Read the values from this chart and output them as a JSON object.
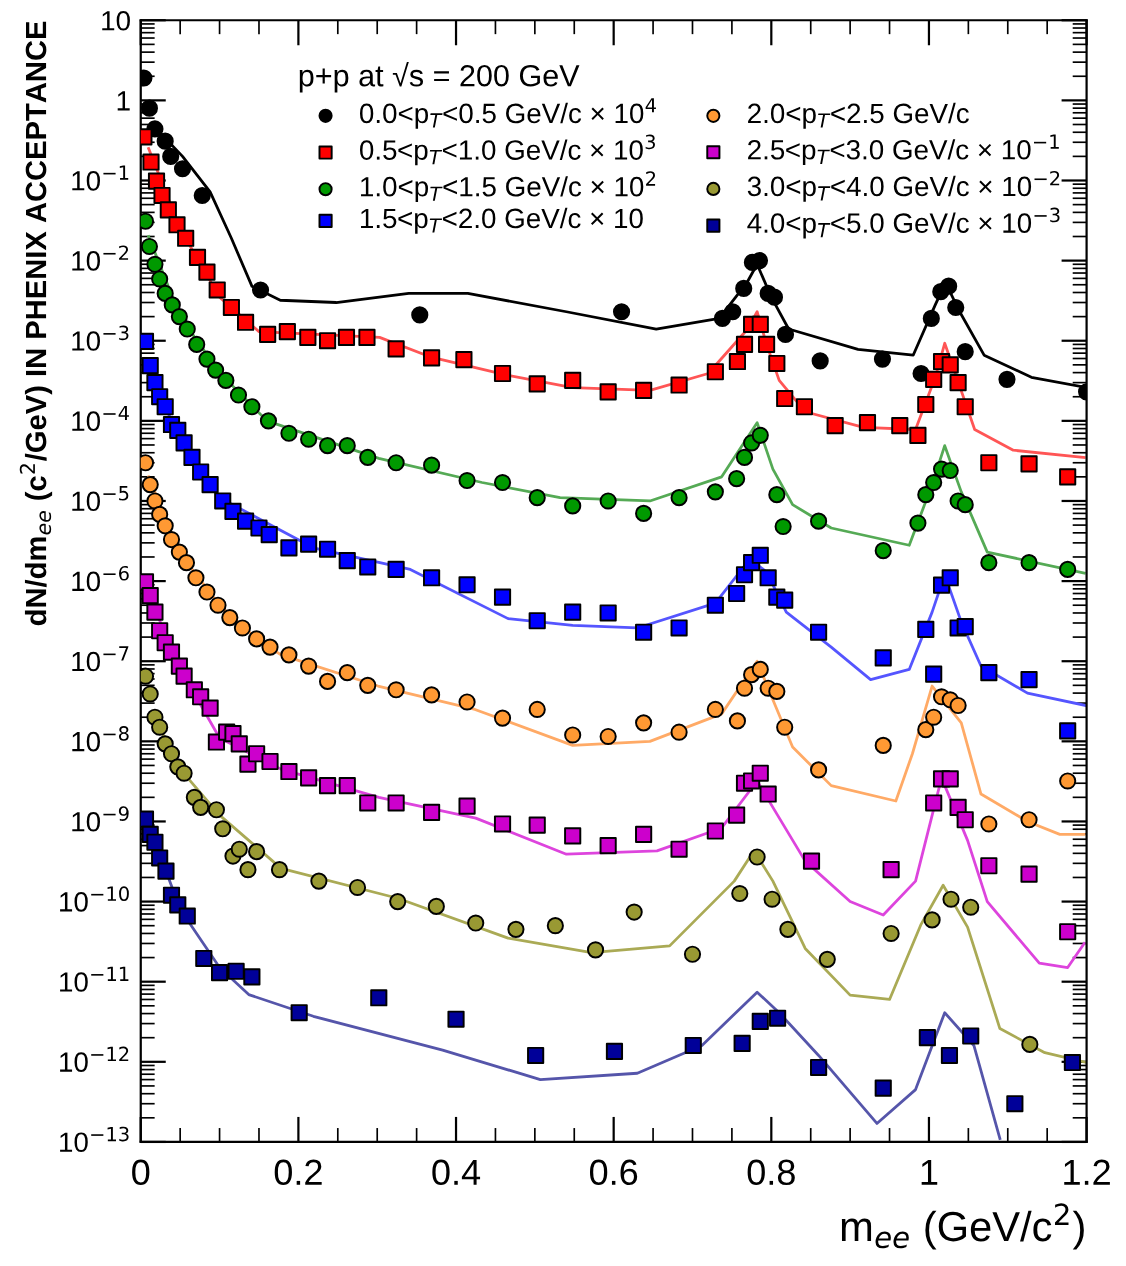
{
  "chart_data": {
    "type": "scatter",
    "legend_title": "p+p at √s = 200 GeV",
    "xlabel": "m$_{ee}$ (GeV/c$^{2}$)",
    "ylabel": "dN/dm$_{ee}$ (c$^{2}$/GeV) IN PHENIX ACCEPTANCE",
    "log": "y",
    "xlim": [
      0,
      1.2
    ],
    "ylim": [
      1e-13,
      10
    ],
    "xticks": [
      0,
      0.2,
      0.4,
      0.6,
      0.8,
      1,
      1.2
    ],
    "yticks": [
      {
        "value": 1e-13,
        "label": "10$^{−13}$"
      },
      {
        "value": 1e-12,
        "label": "10$^{−12}$"
      },
      {
        "value": 1e-11,
        "label": "10$^{−11}$"
      },
      {
        "value": 1e-10,
        "label": "10$^{−10}$"
      },
      {
        "value": 1e-09,
        "label": "10$^{−9}$"
      },
      {
        "value": 1e-08,
        "label": "10$^{−8}$"
      },
      {
        "value": 1e-07,
        "label": "10$^{−7}$"
      },
      {
        "value": 1e-06,
        "label": "10$^{−6}$"
      },
      {
        "value": 1e-05,
        "label": "10$^{−5}$"
      },
      {
        "value": 0.0001,
        "label": "10$^{−4}$"
      },
      {
        "value": 0.001,
        "label": "10$^{−3}$"
      },
      {
        "value": 0.01,
        "label": "10$^{−2}$"
      },
      {
        "value": 0.1,
        "label": "10$^{−1}$"
      },
      1,
      10
    ],
    "grid": false,
    "legend": "top",
    "series": [
      {
        "name": "0.0<p$_{T}$<0.5 GeV/c × 10$^{4}$",
        "marker": "circle",
        "color": "#000000",
        "x": [
          0.004,
          0.011,
          0.018,
          0.031,
          0.038,
          0.053,
          0.078,
          0.152,
          0.354,
          0.61,
          0.738,
          0.751,
          0.765,
          0.776,
          0.785,
          0.796,
          0.804,
          0.818,
          0.862,
          0.941,
          0.99,
          1.003,
          1.015,
          1.025,
          1.034,
          1.046,
          1.099,
          1.2
        ],
        "values": [
          1.9,
          0.8,
          0.44,
          0.31,
          0.2,
          0.14,
          0.065,
          0.0043,
          0.0021,
          0.0023,
          0.0019,
          0.0023,
          0.0045,
          0.0095,
          0.01,
          0.0039,
          0.0035,
          0.0012,
          0.00056,
          0.00059,
          0.00039,
          0.0019,
          0.0041,
          0.0048,
          0.0026,
          0.00073,
          0.00033,
          0.00023
        ]
      },
      {
        "name": "0.5<p$_{T}$<1.0 GeV/c × 10$^{3}$",
        "marker": "square",
        "color": "#ff0000",
        "x": [
          0.004,
          0.013,
          0.02,
          0.027,
          0.035,
          0.046,
          0.057,
          0.072,
          0.084,
          0.097,
          0.115,
          0.133,
          0.161,
          0.186,
          0.212,
          0.237,
          0.261,
          0.287,
          0.324,
          0.369,
          0.41,
          0.459,
          0.503,
          0.548,
          0.593,
          0.638,
          0.683,
          0.729,
          0.757,
          0.766,
          0.775,
          0.786,
          0.794,
          0.807,
          0.817,
          0.842,
          0.881,
          0.922,
          0.963,
          0.986,
          0.996,
          1.006,
          1.016,
          1.027,
          1.037,
          1.046,
          1.076,
          1.127,
          1.176
        ],
        "values": [
          0.35,
          0.17,
          0.098,
          0.065,
          0.043,
          0.028,
          0.019,
          0.011,
          0.0072,
          0.0043,
          0.0026,
          0.0017,
          0.0012,
          0.0013,
          0.0011,
          0.001,
          0.0011,
          0.0011,
          0.00079,
          0.00061,
          0.00058,
          0.00039,
          0.00029,
          0.00032,
          0.00023,
          0.00024,
          0.00028,
          0.00041,
          0.00055,
          0.0009,
          0.0016,
          0.0016,
          0.0009,
          0.00052,
          0.00019,
          0.00015,
          8.7e-05,
          9.5e-05,
          8.7e-05,
          6.6e-05,
          0.00016,
          0.00033,
          0.00055,
          0.0005,
          0.0003,
          0.00015,
          3e-05,
          2.9e-05,
          2e-05
        ]
      },
      {
        "name": "1.0<p$_{T}$<1.5 GeV/c × 10$^{2}$",
        "marker": "circle",
        "color": "#009900",
        "x": [
          0.006,
          0.011,
          0.018,
          0.024,
          0.031,
          0.04,
          0.049,
          0.059,
          0.071,
          0.084,
          0.095,
          0.108,
          0.124,
          0.141,
          0.162,
          0.188,
          0.213,
          0.237,
          0.262,
          0.288,
          0.324,
          0.369,
          0.414,
          0.459,
          0.503,
          0.548,
          0.593,
          0.638,
          0.683,
          0.729,
          0.756,
          0.766,
          0.775,
          0.786,
          0.807,
          0.815,
          0.86,
          0.942,
          0.986,
          0.996,
          1.006,
          1.016,
          1.027,
          1.037,
          1.046,
          1.076,
          1.127,
          1.176
        ],
        "values": [
          0.031,
          0.015,
          0.009,
          0.0059,
          0.0039,
          0.0028,
          0.002,
          0.0014,
          0.0009,
          0.00059,
          0.00043,
          0.00032,
          0.00021,
          0.00015,
          0.0001,
          7e-05,
          5.9e-05,
          4.9e-05,
          4.9e-05,
          3.5e-05,
          3e-05,
          2.8e-05,
          1.8e-05,
          1.7e-05,
          1.1e-05,
          8.7e-06,
          1e-05,
          7e-06,
          1.1e-05,
          1.3e-05,
          1.9e-05,
          3.5e-05,
          5.3e-05,
          6.6e-05,
          1.2e-05,
          4.8e-06,
          5.6e-06,
          2.4e-06,
          5.3e-06,
          1.2e-05,
          1.7e-05,
          2.5e-05,
          2.4e-05,
          1e-05,
          9e-06,
          1.7e-06,
          1.7e-06,
          1.4e-06
        ]
      },
      {
        "name": "1.5<p$_{T}$<2.0 GeV/c × 10",
        "marker": "square",
        "color": "#0000ff",
        "x": [
          0.006,
          0.012,
          0.018,
          0.024,
          0.031,
          0.039,
          0.047,
          0.055,
          0.065,
          0.076,
          0.088,
          0.104,
          0.117,
          0.133,
          0.15,
          0.163,
          0.188,
          0.213,
          0.237,
          0.262,
          0.288,
          0.324,
          0.369,
          0.414,
          0.459,
          0.503,
          0.548,
          0.593,
          0.638,
          0.683,
          0.729,
          0.756,
          0.766,
          0.775,
          0.786,
          0.796,
          0.807,
          0.817,
          0.86,
          0.942,
          0.996,
          1.006,
          1.016,
          1.027,
          1.037,
          1.046,
          1.076,
          1.127,
          1.176
        ],
        "values": [
          0.00098,
          0.00049,
          0.0003,
          0.0002,
          0.00015,
          9e-05,
          7.6e-05,
          5.3e-05,
          3.5e-05,
          2.3e-05,
          1.6e-05,
          1e-05,
          7.4e-06,
          5.6e-06,
          4.6e-06,
          3.8e-06,
          2.6e-06,
          2.9e-06,
          2.5e-06,
          1.8e-06,
          1.5e-06,
          1.4e-06,
          1.1e-06,
          9e-07,
          6.3e-07,
          3.2e-07,
          4.1e-07,
          4e-07,
          2.3e-07,
          2.6e-07,
          5e-07,
          7e-07,
          1.2e-06,
          1.7e-06,
          2.1e-06,
          1.1e-06,
          6.3e-07,
          5.8e-07,
          2.3e-07,
          1.1e-07,
          2.5e-07,
          6.9e-08,
          8.9e-07,
          1.1e-06,
          2.6e-07,
          2.7e-07,
          7.2e-08,
          5.9e-08,
          1.35e-08
        ]
      },
      {
        "name": "2.0<p$_{T}$<2.5 GeV/c",
        "marker": "circle",
        "color": "#ff9933",
        "x": [
          0.006,
          0.012,
          0.018,
          0.024,
          0.031,
          0.039,
          0.049,
          0.058,
          0.07,
          0.084,
          0.098,
          0.113,
          0.129,
          0.147,
          0.164,
          0.188,
          0.213,
          0.237,
          0.262,
          0.288,
          0.324,
          0.369,
          0.414,
          0.459,
          0.503,
          0.548,
          0.593,
          0.638,
          0.683,
          0.729,
          0.757,
          0.766,
          0.775,
          0.786,
          0.796,
          0.807,
          0.817,
          0.86,
          0.942,
          0.996,
          1.006,
          1.016,
          1.027,
          1.037,
          1.076,
          1.127,
          1.176
        ],
        "values": [
          3e-05,
          1.6e-05,
          1e-05,
          6.8e-06,
          4.9e-06,
          3.3e-06,
          2.3e-06,
          1.7e-06,
          1.1e-06,
          7.3e-07,
          5e-07,
          3.5e-07,
          2.6e-07,
          1.9e-07,
          1.5e-07,
          1.2e-07,
          8.7e-08,
          5.6e-08,
          7.2e-08,
          5e-08,
          4.4e-08,
          3.8e-08,
          3.1e-08,
          1.95e-08,
          2.5e-08,
          1.2e-08,
          1.15e-08,
          1.7e-08,
          1.3e-08,
          2.5e-08,
          1.8e-08,
          4.6e-08,
          6.8e-08,
          7.9e-08,
          4.6e-08,
          4.2e-08,
          1.5e-08,
          4.4e-09,
          8.9e-09,
          1.4e-08,
          2e-08,
          3.6e-08,
          3.3e-08,
          2.8e-08,
          9.3e-10,
          1.05e-09,
          3.2e-09
        ]
      },
      {
        "name": "2.5<p$_{T}$<3.0 GeV/c × 10$^{−1}$",
        "marker": "square",
        "color": "#cc00cc",
        "x": [
          0.006,
          0.012,
          0.018,
          0.024,
          0.031,
          0.039,
          0.049,
          0.055,
          0.068,
          0.076,
          0.088,
          0.096,
          0.109,
          0.117,
          0.125,
          0.136,
          0.147,
          0.164,
          0.188,
          0.213,
          0.237,
          0.262,
          0.288,
          0.324,
          0.369,
          0.414,
          0.459,
          0.503,
          0.548,
          0.593,
          0.638,
          0.683,
          0.729,
          0.756,
          0.766,
          0.775,
          0.786,
          0.796,
          0.851,
          0.952,
          1.006,
          1.016,
          1.027,
          1.037,
          1.046,
          1.076,
          1.127,
          1.176
        ],
        "values": [
          9.8e-07,
          6.6e-07,
          4.1e-07,
          2.4e-07,
          1.7e-07,
          1.3e-07,
          8.7e-08,
          6.5e-08,
          4.4e-08,
          3.6e-08,
          2.6e-08,
          9.8e-09,
          1.3e-08,
          1.25e-08,
          9.3e-09,
          5.2e-09,
          7e-09,
          5.6e-09,
          4.2e-09,
          3.5e-09,
          2.8e-09,
          2.8e-09,
          1.7e-09,
          1.7e-09,
          1.3e-09,
          1.55e-09,
          9.3e-10,
          9e-10,
          6.6e-10,
          5e-10,
          6.9e-10,
          4.5e-10,
          7.6e-10,
          1.2e-09,
          3e-09,
          3.2e-09,
          4e-09,
          2.2e-09,
          3.2e-10,
          2.5e-10,
          1.7e-09,
          3.4e-09,
          3.4e-09,
          1.5e-09,
          1.05e-09,
          2.8e-10,
          2.2e-10,
          4.2e-11
        ]
      },
      {
        "name": "3.0<p$_{T}$<4.0 GeV/c × 10$^{−2}$",
        "marker": "circle",
        "color": "#999933",
        "x": [
          0.006,
          0.012,
          0.018,
          0.024,
          0.031,
          0.039,
          0.047,
          0.055,
          0.068,
          0.076,
          0.096,
          0.104,
          0.117,
          0.125,
          0.136,
          0.147,
          0.176,
          0.226,
          0.275,
          0.326,
          0.375,
          0.425,
          0.476,
          0.526,
          0.577,
          0.626,
          0.7,
          0.76,
          0.782,
          0.801,
          0.821,
          0.871,
          0.952,
          1.004,
          1.028,
          1.053,
          1.128
        ],
        "values": [
          6.5e-08,
          3.9e-08,
          2e-08,
          1.5e-08,
          9.3e-09,
          7e-09,
          4.8e-09,
          4e-09,
          2e-09,
          1.5e-09,
          1.4e-09,
          8.1e-10,
          3.7e-10,
          4.5e-10,
          2.5e-10,
          4.2e-10,
          2.5e-10,
          1.8e-10,
          1.5e-10,
          1e-10,
          8.7e-11,
          5.4e-11,
          4.5e-11,
          5e-11,
          2.5e-11,
          7.4e-11,
          2.2e-11,
          1.26e-10,
          3.6e-10,
          1.07e-10,
          4.5e-11,
          1.9e-11,
          4e-11,
          5.9e-11,
          1.07e-10,
          8.5e-11,
          1.65e-12
        ]
      },
      {
        "name": "4.0<p$_{T}$<5.0 GeV/c × 10$^{−3}$",
        "marker": "square",
        "color": "#000099",
        "x": [
          0.006,
          0.012,
          0.018,
          0.024,
          0.032,
          0.039,
          0.047,
          0.059,
          0.08,
          0.1,
          0.121,
          0.141,
          0.201,
          0.302,
          0.4,
          0.501,
          0.601,
          0.701,
          0.763,
          0.786,
          0.808,
          0.86,
          0.942,
          0.998,
          1.026,
          1.053,
          1.109,
          1.182
        ],
        "values": [
          1.07e-09,
          6.9e-10,
          5.5e-10,
          3.5e-10,
          2.4e-10,
          1.2e-10,
          9.1e-11,
          6.6e-11,
          1.95e-11,
          1.3e-11,
          1.35e-11,
          1.15e-11,
          4.1e-12,
          6.3e-12,
          3.4e-12,
          1.2e-12,
          1.35e-12,
          1.6e-12,
          1.7e-12,
          3.2e-12,
          3.5e-12,
          8.5e-13,
          4.7e-13,
          2e-12,
          1.2e-12,
          2.1e-12,
          3e-13,
          9.8e-13
        ]
      },
      {
        "type": "line",
        "color": "#000000",
        "x": [
          0.013,
          0.053,
          0.088,
          0.115,
          0.141,
          0.177,
          0.248,
          0.34,
          0.415,
          0.54,
          0.654,
          0.734,
          0.769,
          0.782,
          0.8,
          0.822,
          0.91,
          0.98,
          1.008,
          1.021,
          1.039,
          1.07,
          1.13,
          1.2
        ],
        "values": [
          0.52,
          0.2,
          0.072,
          0.019,
          0.0048,
          0.0032,
          0.003,
          0.0039,
          0.0039,
          0.0023,
          0.0014,
          0.0019,
          0.0053,
          0.009,
          0.0035,
          0.0014,
          0.00078,
          0.00066,
          0.0028,
          0.0053,
          0.0023,
          0.00066,
          0.00035,
          0.00026
        ]
      },
      {
        "type": "line",
        "color": "#ff5555",
        "x": [
          0.01,
          0.05,
          0.1,
          0.15,
          0.303,
          0.367,
          0.466,
          0.548,
          0.646,
          0.72,
          0.77,
          0.782,
          0.794,
          0.81,
          0.843,
          0.917,
          0.983,
          1.008,
          1.02,
          1.033,
          1.058,
          1.107,
          1.197
        ],
        "values": [
          0.25,
          0.025,
          0.0035,
          0.0013,
          0.0011,
          0.00063,
          0.00037,
          0.00026,
          0.00024,
          0.00039,
          0.0014,
          0.0023,
          0.0009,
          0.00032,
          0.00013,
          8.3e-05,
          7.8e-05,
          0.00035,
          0.00093,
          0.0004,
          7.8e-05,
          4.3e-05,
          3.5e-05
        ]
      },
      {
        "type": "line",
        "color": "#55aa55",
        "x": [
          0.01,
          0.05,
          0.1,
          0.16,
          0.302,
          0.433,
          0.532,
          0.646,
          0.737,
          0.782,
          0.802,
          0.827,
          0.876,
          0.975,
          1.004,
          1.02,
          1.041,
          1.074,
          1.197
        ],
        "values": [
          0.02,
          0.002,
          0.0004,
          0.0001,
          3.4e-05,
          1.7e-05,
          1.1e-05,
          1e-05,
          2e-05,
          9.5e-05,
          2.5e-05,
          9e-06,
          4.6e-06,
          2.8e-06,
          1.6e-05,
          4.9e-05,
          1.3e-05,
          2.3e-06,
          1.26e-06
        ]
      },
      {
        "type": "line",
        "color": "#5555ff",
        "x": [
          0.02,
          0.05,
          0.1,
          0.219,
          0.342,
          0.466,
          0.548,
          0.63,
          0.729,
          0.773,
          0.794,
          0.819,
          0.876,
          0.926,
          0.975,
          1.004,
          1.02,
          1.041,
          1.066,
          1.125,
          1.199
        ],
        "values": [
          0.00025,
          6e-05,
          1.1e-05,
          2.6e-06,
          1.4e-06,
          3.4e-07,
          2.8e-07,
          2.6e-07,
          5.3e-07,
          1.9e-06,
          1.3e-06,
          4.1e-07,
          1.5e-07,
          5.9e-08,
          7.9e-08,
          4.1e-07,
          1.2e-06,
          3.1e-07,
          8.7e-08,
          4e-08,
          2.8e-08
        ]
      },
      {
        "type": "line",
        "color": "#ffaa66",
        "x": [
          0.01,
          0.05,
          0.1,
          0.15,
          0.178,
          0.301,
          0.424,
          0.548,
          0.646,
          0.737,
          0.782,
          0.802,
          0.827,
          0.876,
          0.958,
          0.979,
          1.004,
          1.041,
          1.066,
          1.125,
          1.166,
          1.197
        ],
        "values": [
          2e-05,
          2.2e-06,
          5e-07,
          1.8e-07,
          1.2e-07,
          4.9e-08,
          2.5e-08,
          8.9e-09,
          1e-08,
          2.2e-08,
          1e-07,
          3.3e-08,
          8.5e-09,
          2.8e-09,
          1.8e-09,
          7e-09,
          4.9e-08,
          1.7e-08,
          2.2e-09,
          1e-09,
          6.9e-10,
          6.9e-10
        ]
      },
      {
        "type": "line",
        "color": "#dd44dd",
        "x": [
          0.02,
          0.05,
          0.1,
          0.178,
          0.302,
          0.425,
          0.54,
          0.655,
          0.737,
          0.782,
          0.802,
          0.843,
          0.9,
          0.942,
          0.983,
          1.016,
          1.049,
          1.074,
          1.14,
          1.176,
          1.197
        ],
        "values": [
          4e-07,
          8e-08,
          1.1e-08,
          4.5e-09,
          2e-09,
          1.1e-09,
          3.9e-10,
          4.3e-10,
          8.3e-10,
          3.2e-09,
          1.5e-09,
          3.2e-10,
          1e-10,
          6.8e-11,
          1.8e-10,
          3.5e-09,
          5.8e-10,
          1e-10,
          1.7e-11,
          1.5e-11,
          3e-11
        ]
      },
      {
        "type": "line",
        "color": "#aaaa55",
        "x": [
          0.02,
          0.05,
          0.1,
          0.178,
          0.326,
          0.466,
          0.572,
          0.671,
          0.753,
          0.778,
          0.802,
          0.843,
          0.9,
          0.95,
          0.99,
          1.018,
          1.049,
          1.09,
          1.147,
          1.2
        ],
        "values": [
          1.8e-08,
          4.5e-09,
          1.2e-09,
          2.6e-10,
          1.1e-10,
          3.5e-11,
          2.3e-11,
          2.8e-11,
          1.8e-10,
          4.3e-10,
          1.8e-10,
          2.6e-11,
          6.8e-12,
          6e-12,
          5.2e-11,
          1.6e-10,
          4.8e-11,
          2.6e-12,
          1.3e-12,
          9.8e-13
        ]
      },
      {
        "type": "line",
        "color": "#5555aa",
        "x": [
          0.02,
          0.05,
          0.1,
          0.137,
          0.219,
          0.383,
          0.507,
          0.63,
          0.712,
          0.782,
          0.81,
          0.86,
          0.934,
          0.983,
          1.02,
          1.057,
          1.09
        ],
        "values": [
          5e-10,
          8e-11,
          1.5e-11,
          6.9e-12,
          3.7e-12,
          1.4e-12,
          6e-13,
          7.2e-13,
          1.6e-12,
          7.4e-12,
          4.1e-12,
          1.2e-12,
          1.7e-13,
          4.5e-13,
          4.1e-12,
          1.6e-12,
          1.1e-13
        ]
      }
    ]
  }
}
